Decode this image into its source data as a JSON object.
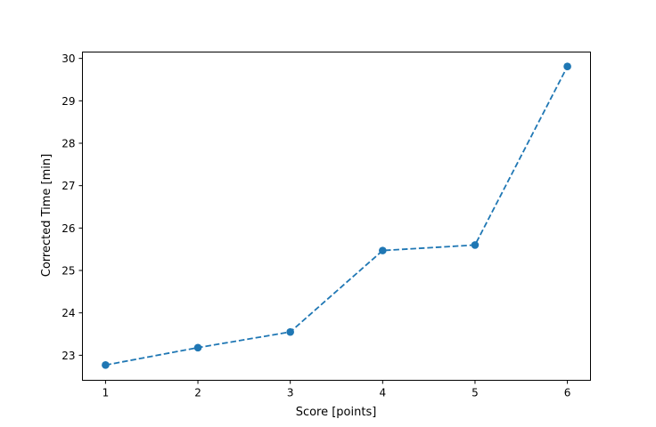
{
  "chart_data": {
    "type": "line",
    "title": "",
    "xlabel": "Score [points]",
    "ylabel": "Corrected Time [min]",
    "xlim": [
      0.75,
      6.25
    ],
    "ylim": [
      22.41,
      30.15
    ],
    "xticks": [
      1,
      2,
      3,
      4,
      5,
      6
    ],
    "yticks": [
      23,
      24,
      25,
      26,
      27,
      28,
      29,
      30
    ],
    "grid": false,
    "series": [
      {
        "x": [
          1,
          2,
          3,
          4,
          5,
          6
        ],
        "y": [
          22.77,
          23.18,
          23.55,
          25.47,
          25.6,
          29.81
        ],
        "color": "#1f77b4",
        "line_style": "dashed",
        "marker": "circle"
      }
    ]
  }
}
